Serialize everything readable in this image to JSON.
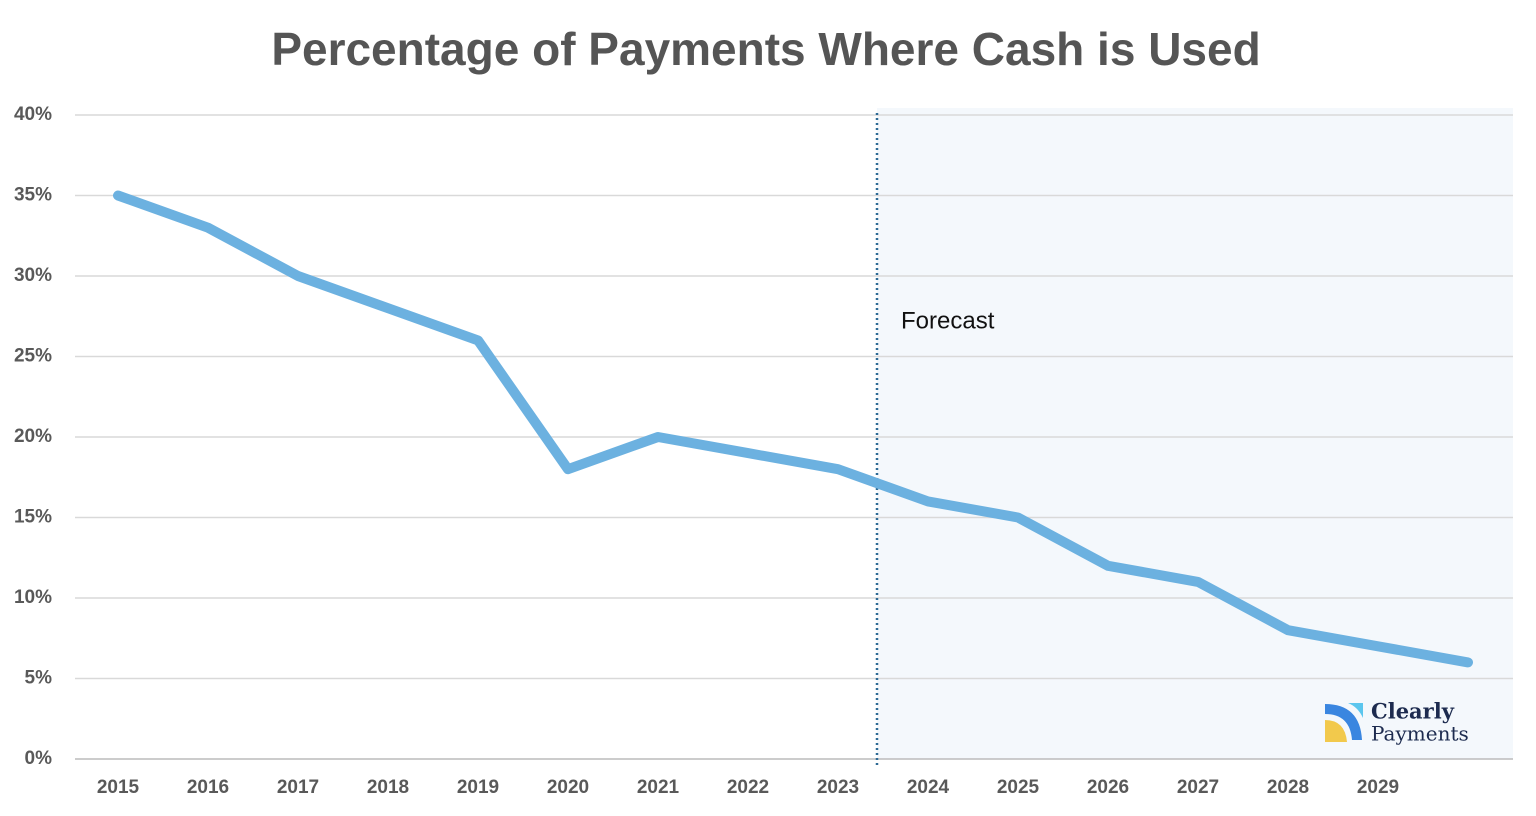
{
  "chart_data": {
    "type": "line",
    "title": "Percentage of Payments Where Cash is Used",
    "categories": [
      "2015",
      "2016",
      "2017",
      "2018",
      "2019",
      "2020",
      "2021",
      "2022",
      "2023",
      "2024",
      "2025",
      "2026",
      "2027",
      "2028",
      "2029",
      null
    ],
    "values": [
      35,
      33,
      30,
      28,
      26,
      18,
      20,
      19,
      18,
      16,
      15,
      12,
      11,
      8,
      7,
      6
    ],
    "color": "#6cb1e0",
    "ylim": [
      0,
      40
    ],
    "yticks": [
      {
        "value": 0,
        "label": "0%"
      },
      {
        "value": 5,
        "label": "5%"
      },
      {
        "value": 10,
        "label": "10%"
      },
      {
        "value": 15,
        "label": "15%"
      },
      {
        "value": 20,
        "label": "20%"
      },
      {
        "value": 25,
        "label": "25%"
      },
      {
        "value": 30,
        "label": "30%"
      },
      {
        "value": 35,
        "label": "35%"
      },
      {
        "value": 40,
        "label": "40%"
      }
    ],
    "grid": true,
    "forecast": {
      "label": "Forecast",
      "after": "2023"
    },
    "logo_text": [
      "Clearly",
      "Payments"
    ]
  }
}
